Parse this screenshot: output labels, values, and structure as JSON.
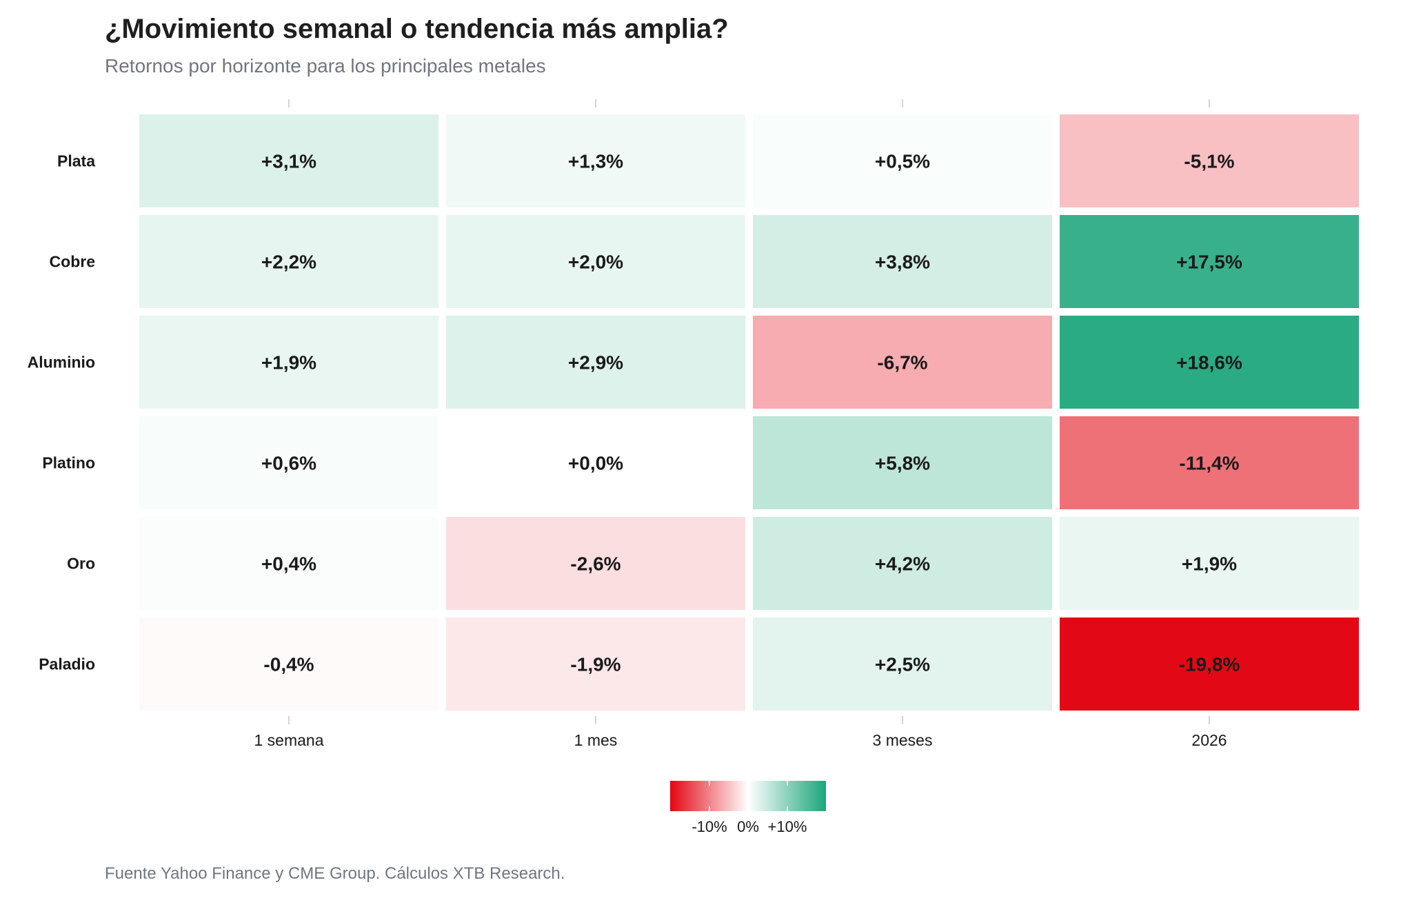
{
  "header": {
    "title": "¿Movimiento semanal o tendencia más amplia?",
    "subtitle": "Retornos por horizonte para los principales metales"
  },
  "footer": {
    "source": "Fuente Yahoo Finance y CME Group. Cálculos XTB Research."
  },
  "colors": {
    "negative": "#e30613",
    "neutral": "#ffffff",
    "positive": "#1ba57a"
  },
  "chart_data": {
    "type": "heatmap",
    "rows": [
      "Plata",
      "Cobre",
      "Aluminio",
      "Platino",
      "Oro",
      "Paladio"
    ],
    "columns": [
      "1 semana",
      "1 mes",
      "3 meses",
      "2026"
    ],
    "values": [
      [
        3.1,
        1.3,
        0.5,
        -5.1
      ],
      [
        2.2,
        2.0,
        3.8,
        17.5
      ],
      [
        1.9,
        2.9,
        -6.7,
        18.6
      ],
      [
        0.6,
        0.0,
        5.8,
        -11.4
      ],
      [
        0.4,
        -2.6,
        4.2,
        1.9
      ],
      [
        -0.4,
        -1.9,
        2.5,
        -19.8
      ]
    ],
    "labels": [
      [
        "+3,1%",
        "+1,3%",
        "+0,5%",
        "-5,1%"
      ],
      [
        "+2,2%",
        "+2,0%",
        "+3,8%",
        "+17,5%"
      ],
      [
        "+1,9%",
        "+2,9%",
        "-6,7%",
        "+18,6%"
      ],
      [
        "+0,6%",
        "+0,0%",
        "+5,8%",
        "-11,4%"
      ],
      [
        "+0,4%",
        "-2,6%",
        "+4,2%",
        "+1,9%"
      ],
      [
        "-0,4%",
        "-1,9%",
        "+2,5%",
        "-19,8%"
      ]
    ],
    "color_scale": {
      "domain": [
        -20,
        0,
        20
      ],
      "legend_ticks": [
        -10,
        0,
        10
      ],
      "legend_tick_labels": [
        "-10%",
        "0%",
        "+10%"
      ]
    }
  }
}
